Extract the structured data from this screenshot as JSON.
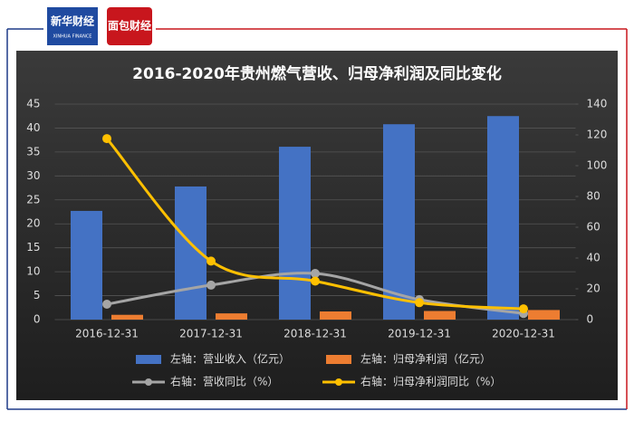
{
  "header": {
    "logo_left": "新华财经",
    "logo_left_sub": "XINHUA FINANCE",
    "logo_right": "面包财经"
  },
  "chart_data": {
    "type": "bar-line",
    "title": "2016-2020年贵州燃气营收、归母净利润及同比变化",
    "categories": [
      "2016-12-31",
      "2017-12-31",
      "2018-12-31",
      "2019-12-31",
      "2020-12-31"
    ],
    "series": [
      {
        "name": "左轴：营业收入（亿元）",
        "type": "bar",
        "color": "#4472c4",
        "values": [
          22.7,
          27.8,
          36.1,
          40.8,
          42.5
        ]
      },
      {
        "name": "左轴：归母净利润（亿元）",
        "type": "bar",
        "color": "#ed7d31",
        "values": [
          1.0,
          1.3,
          1.7,
          1.8,
          2.0
        ]
      },
      {
        "name": "右轴：营收同比（%）",
        "type": "line",
        "axis": "y2",
        "color": "#a5a5a5",
        "values": [
          10,
          22.4,
          30,
          13,
          4
        ]
      },
      {
        "name": "右轴：归母净利润同比（%）",
        "type": "line",
        "axis": "y2",
        "color": "#ffc000",
        "values": [
          117.6,
          38,
          25,
          11,
          7
        ]
      }
    ],
    "ylim": [
      0,
      45
    ],
    "yticks": [
      0,
      5,
      10,
      15,
      20,
      25,
      30,
      35,
      40,
      45
    ],
    "y2lim": [
      0,
      140
    ],
    "y2ticks": [
      0,
      20,
      40,
      60,
      80,
      100,
      120,
      140
    ],
    "grid": true,
    "legend": "bottom"
  }
}
